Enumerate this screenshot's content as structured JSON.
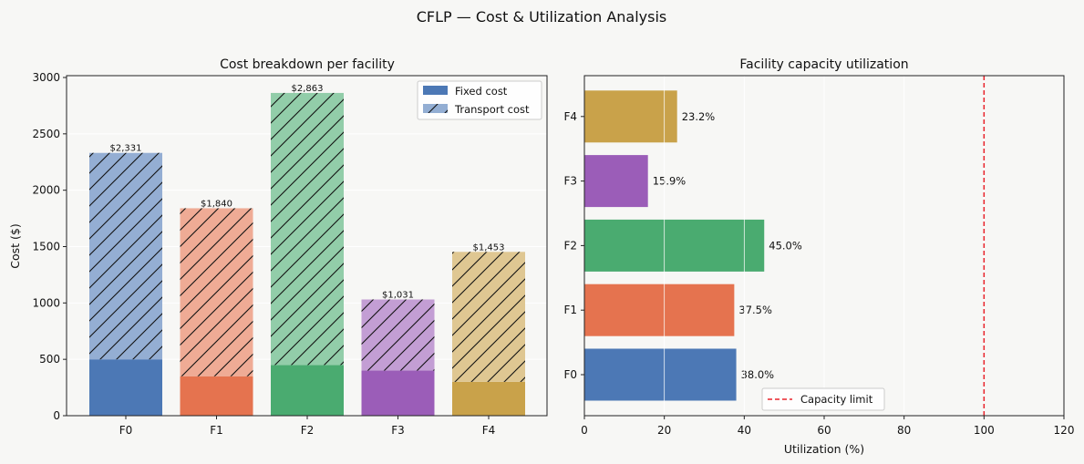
{
  "figure": {
    "title": "CFLP — Cost & Utilization Analysis"
  },
  "colors": {
    "F0": "#4c78b5",
    "F1": "#e5734f",
    "F2": "#4aab70",
    "F3": "#9b5db8",
    "F4": "#c9a24a",
    "capacity_line": "#e8222a"
  },
  "chart_data": [
    {
      "type": "bar",
      "stacked": true,
      "title": "Cost breakdown per facility",
      "xlabel": "",
      "ylabel": "Cost ($)",
      "categories": [
        "F0",
        "F1",
        "F2",
        "F3",
        "F4"
      ],
      "series": [
        {
          "name": "Fixed cost",
          "values": [
            500,
            350,
            450,
            400,
            300
          ]
        },
        {
          "name": "Transport cost",
          "values": [
            1831,
            1490,
            2413,
            631,
            1153
          ]
        }
      ],
      "totals": [
        2331,
        1840,
        2863,
        1031,
        1453
      ],
      "total_labels": [
        "$2,331",
        "$1,840",
        "$2,863",
        "$1,031",
        "$1,453"
      ],
      "ylim": [
        0,
        3000
      ],
      "yticks": [
        0,
        500,
        1000,
        1500,
        2000,
        2500,
        3000
      ],
      "grid": "horizontal",
      "legend": "top-right"
    },
    {
      "type": "bar",
      "orientation": "horizontal",
      "title": "Facility capacity utilization",
      "xlabel": "Utilization (%)",
      "ylabel": "",
      "categories": [
        "F0",
        "F1",
        "F2",
        "F3",
        "F4"
      ],
      "values": [
        38.0,
        37.5,
        45.0,
        15.9,
        23.2
      ],
      "value_labels": [
        "38.0%",
        "37.5%",
        "45.0%",
        "15.9%",
        "23.2%"
      ],
      "xlim": [
        0,
        120
      ],
      "xticks": [
        0,
        20,
        40,
        60,
        80,
        100,
        120
      ],
      "reference_line": {
        "x": 100,
        "label": "Capacity limit",
        "style": "dashed"
      },
      "grid": "vertical",
      "legend": "bottom-center"
    }
  ]
}
